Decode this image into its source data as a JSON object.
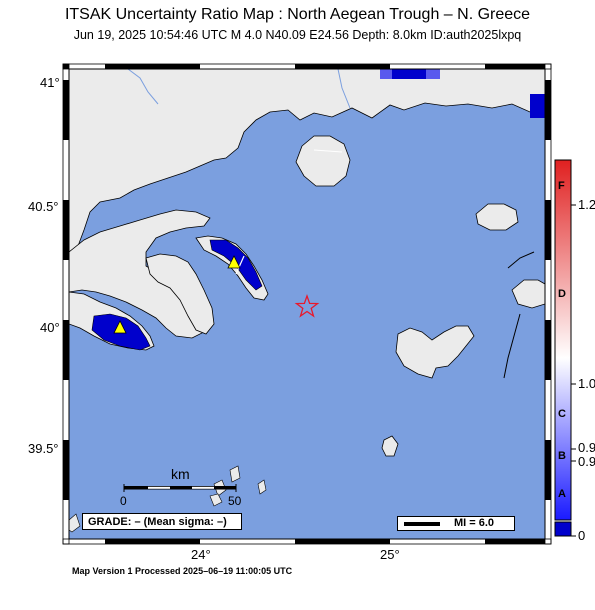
{
  "header": {
    "title": "ITSAK Uncertainty Ratio Map : North Aegean Trough – N. Greece",
    "subtitle": "Jun 19, 2025 10:54:46 UTC   M 4.0   N40.09 E24.56   Depth: 8.0km   ID:auth2025lxpq"
  },
  "map": {
    "lat_ticks": [
      "41°",
      "40.5°",
      "40°",
      "39.5°"
    ],
    "lon_ticks": [
      "24°",
      "25°"
    ],
    "epicenter": {
      "lat": 40.09,
      "lon": 24.56,
      "symbol": "star-icon",
      "color": "#e8192c"
    },
    "stations": [
      {
        "name": "station-1",
        "symbol": "triangle-icon",
        "color": "#ffff00"
      },
      {
        "name": "station-2",
        "symbol": "triangle-icon",
        "color": "#ffff00"
      }
    ],
    "colors": {
      "sea": "#7b9fdf",
      "land": "#ebebeb",
      "high_ratio": "#0000cc",
      "low_ratio": "#5a5aee"
    }
  },
  "scale_bar": {
    "unit": "km",
    "min_label": "0",
    "max_label": "50"
  },
  "grade": {
    "text": "GRADE: – (Mean sigma: –)"
  },
  "mi_legend": {
    "text": "MI = 6.0"
  },
  "colorbar": {
    "ticks": [
      "1.2",
      "1.0",
      "0.9",
      "0.9",
      "0"
    ],
    "letters": [
      "F",
      "D",
      "C",
      "B",
      "A"
    ],
    "colors": {
      "top": "#e02020",
      "mid": "#ffffff",
      "bottom": "#1a1aff",
      "base": "#0000cc"
    }
  },
  "footer": {
    "text": "Map Version 1 Processed 2025–06–19 11:00:05 UTC"
  }
}
